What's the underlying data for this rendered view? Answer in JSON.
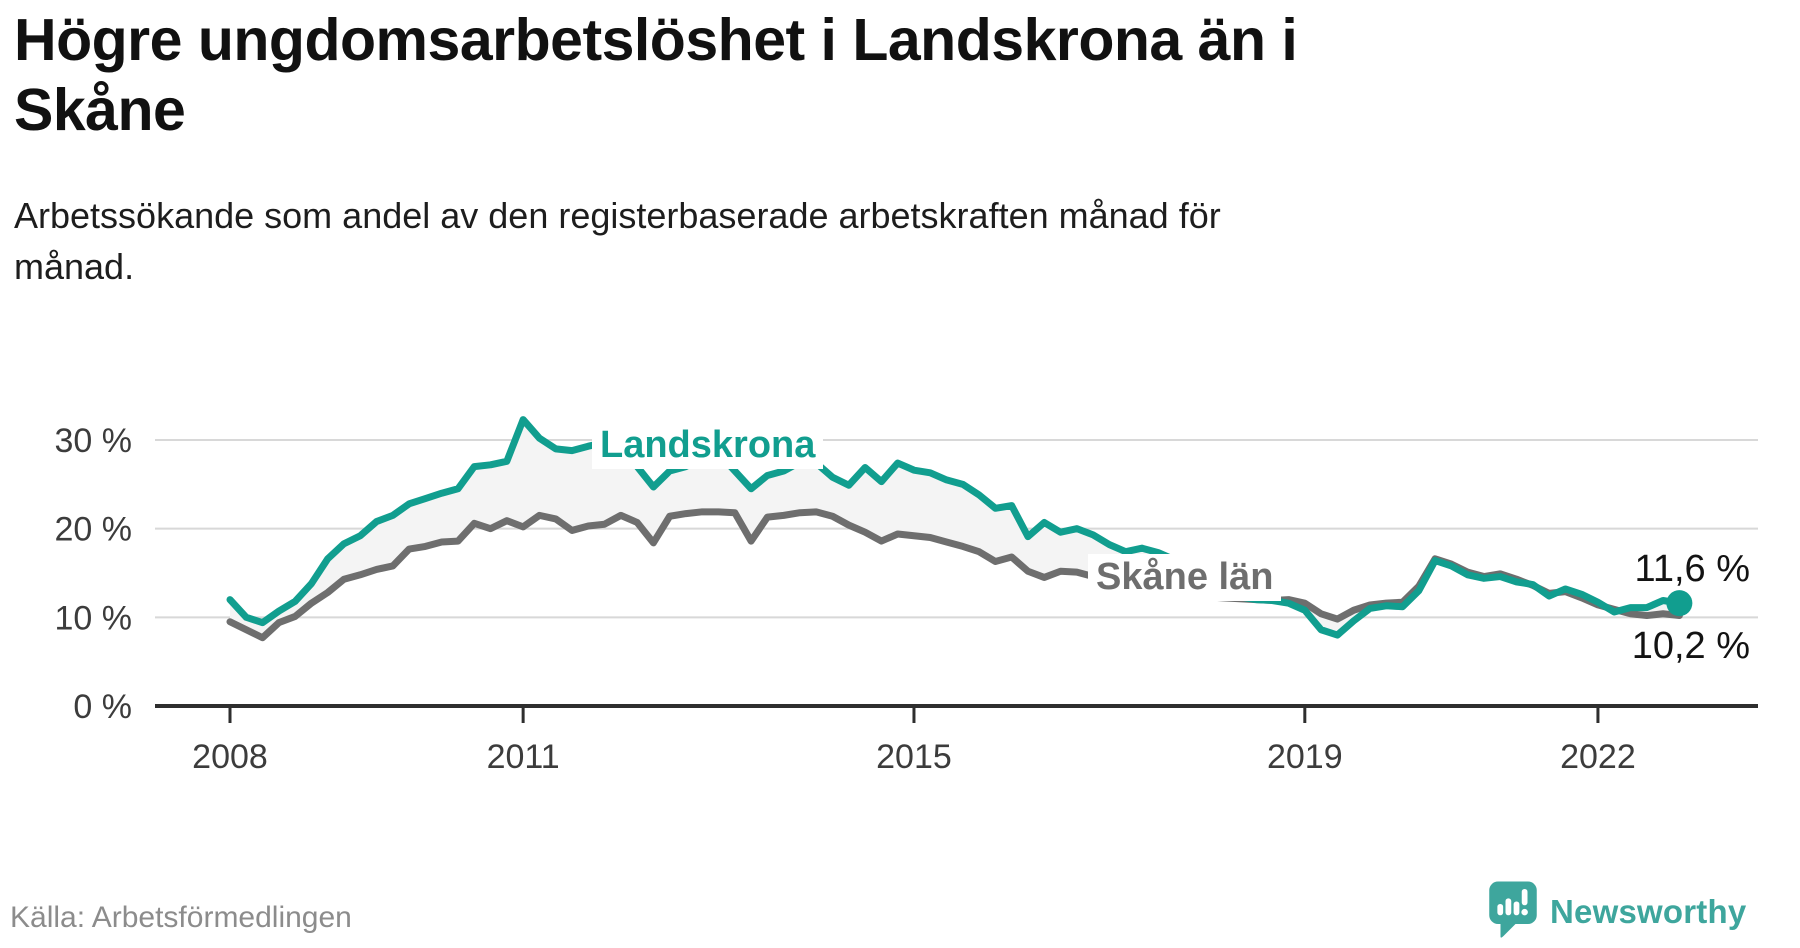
{
  "header": {
    "title": "Högre ungdomsarbetslöshet i Landskrona än i Skåne",
    "title_lines": [
      "Högre ungdomsarbetslöshet i Landskrona än i",
      "Skåne"
    ],
    "subtitle": "Arbetssökande som andel av den registerbaserade arbetskraften månad för månad.",
    "subtitle_lines": [
      "Arbetssökande som andel av den registerbaserade arbetskraften månad för",
      "månad."
    ]
  },
  "footer": {
    "source": "Källa: Arbetsförmedlingen",
    "brand": "Newsworthy"
  },
  "colors": {
    "landskrona": "#119e8f",
    "skane": "#6e6e6e",
    "between_fill": "#f4f4f4",
    "grid": "#d8d8d8",
    "axis": "#2e2e2e",
    "tick_text": "#3c3c3c",
    "brand_teal": "#3ea69d"
  },
  "chart_data": {
    "type": "line",
    "title": "Högre ungdomsarbetslöshet i Landskrona än i Skåne",
    "xlabel": "",
    "ylabel": "Arbetssökande som andel av den registerbaserade arbetskraften",
    "x_unit": "year (monthly data, 2-month sampling)",
    "x_start_year": 2008,
    "x_step_months": 2,
    "x_ticks": [
      2008,
      2011,
      2015,
      2019,
      2022
    ],
    "y_tick_values": [
      0,
      10,
      20,
      30
    ],
    "y_ticks": [
      "0 %",
      "10 %",
      "20 %",
      "30 %"
    ],
    "ylim": [
      0,
      33.5
    ],
    "grid": "horizontal",
    "legend": "inline-labels",
    "series": [
      {
        "name": "Landskrona",
        "color": "#119e8f",
        "end_label": "11,6 %",
        "end_value": 11.6,
        "values": [
          12.0,
          10.0,
          9.4,
          10.7,
          11.8,
          13.8,
          16.6,
          18.3,
          19.2,
          20.8,
          21.5,
          22.8,
          23.4,
          24.0,
          24.5,
          27.0,
          27.2,
          27.6,
          32.3,
          30.2,
          29.0,
          28.8,
          29.3,
          29.7,
          29.5,
          27.0,
          24.7,
          26.5,
          27.0,
          28.0,
          28.5,
          26.5,
          24.5,
          26.0,
          26.5,
          27.5,
          27.4,
          25.8,
          24.9,
          26.9,
          25.3,
          27.4,
          26.6,
          26.3,
          25.5,
          25.0,
          23.8,
          22.3,
          22.6,
          19.1,
          20.7,
          19.6,
          20.0,
          19.3,
          18.2,
          17.4,
          17.8,
          17.3,
          16.5,
          15.2,
          13.8,
          13.1,
          12.3,
          12.0,
          11.9,
          11.6,
          10.8,
          8.6,
          8.0,
          9.6,
          11.0,
          11.3,
          11.2,
          13.0,
          16.4,
          15.8,
          14.8,
          14.4,
          14.6,
          14.0,
          13.7,
          12.4,
          13.2,
          12.6,
          11.7,
          10.6,
          11.1,
          11.1,
          11.9,
          11.6
        ]
      },
      {
        "name": "Skåne län",
        "color": "#6e6e6e",
        "end_label": "10,2 %",
        "end_value": 10.2,
        "values": [
          9.5,
          8.6,
          7.7,
          9.4,
          10.1,
          11.6,
          12.8,
          14.3,
          14.8,
          15.4,
          15.8,
          17.7,
          18.0,
          18.5,
          18.6,
          20.6,
          20.0,
          20.9,
          20.2,
          21.5,
          21.1,
          19.8,
          20.3,
          20.5,
          21.5,
          20.7,
          18.4,
          21.4,
          21.7,
          21.9,
          21.9,
          21.8,
          18.6,
          21.3,
          21.5,
          21.8,
          21.9,
          21.4,
          20.4,
          19.6,
          18.6,
          19.4,
          19.2,
          19.0,
          18.5,
          18.0,
          17.4,
          16.3,
          16.8,
          15.2,
          14.5,
          15.2,
          15.1,
          14.6,
          14.0,
          13.6,
          13.3,
          13.0,
          12.8,
          12.5,
          12.3,
          12.2,
          12.1,
          12.0,
          11.9,
          12.0,
          11.6,
          10.4,
          9.8,
          10.8,
          11.4,
          11.6,
          11.7,
          13.5,
          16.6,
          16.0,
          15.1,
          14.6,
          14.9,
          14.3,
          13.6,
          12.7,
          12.9,
          12.2,
          11.4,
          10.9,
          10.4,
          10.2,
          10.4,
          10.2
        ]
      }
    ]
  }
}
